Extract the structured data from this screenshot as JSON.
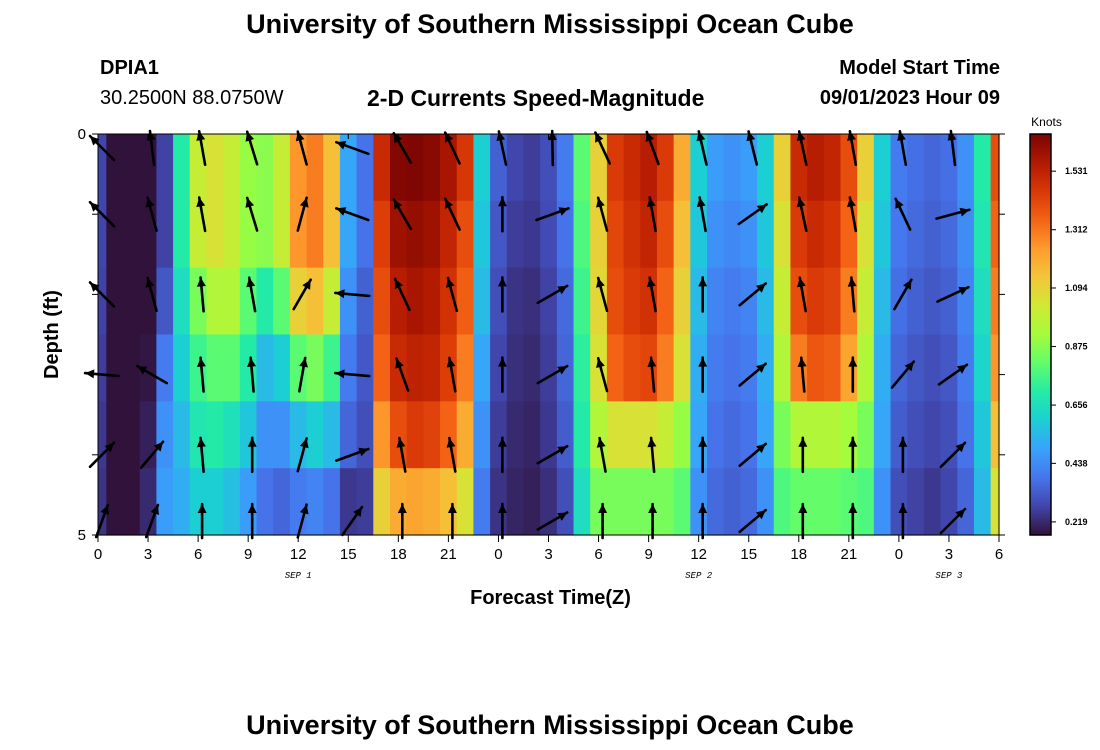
{
  "header": {
    "title": "University of Southern Mississippi Ocean Cube",
    "station_id": "DPIA1",
    "station_coords": "30.2500N  88.0750W",
    "subtitle": "2-D Currents Speed-Magnitude",
    "model_start_label": "Model Start Time",
    "model_start_value": "09/01/2023 Hour 09"
  },
  "footer": {
    "title": "University of Southern Mississippi Ocean Cube"
  },
  "colors": {
    "palette": [
      "#30123b",
      "#4145ab",
      "#4675ed",
      "#39a2fc",
      "#1bcfd4",
      "#24eca6",
      "#61fc6c",
      "#a4fc3b",
      "#d1e834",
      "#f3c63a",
      "#fe9b2d",
      "#f36315",
      "#d93806",
      "#b11901",
      "#7a0402"
    ]
  },
  "chart_data": {
    "type": "heatmap",
    "title": "2-D Currents Speed-Magnitude",
    "xlabel": "Forecast Time(Z)",
    "ylabel": "Depth (ft)",
    "x_hours": [
      0,
      1,
      2,
      3,
      4,
      5,
      6,
      7,
      8,
      9,
      10,
      11,
      12,
      13,
      14,
      15,
      16,
      17,
      18,
      19,
      20,
      21,
      22,
      23,
      24,
      25,
      26,
      27,
      28,
      29,
      30,
      31,
      32,
      33,
      34,
      35,
      36,
      37,
      38,
      39,
      40,
      41,
      42,
      43,
      44,
      45,
      46,
      47,
      48,
      49,
      50,
      51,
      52,
      53,
      54
    ],
    "x_tick_labels": [
      "0",
      "3",
      "6",
      "9",
      "12",
      "15",
      "18",
      "21",
      "0",
      "3",
      "6",
      "9",
      "12",
      "15",
      "18",
      "21",
      "0",
      "3",
      "6"
    ],
    "day_labels": [
      {
        "label": "SEP 1",
        "hour": 12
      },
      {
        "label": "SEP 2",
        "hour": 36
      },
      {
        "label": "SEP 3",
        "hour": 51
      }
    ],
    "y_tick_labels": [
      "0",
      "5"
    ],
    "ylim": [
      0,
      5
    ],
    "depths_ft": [
      0,
      1,
      2,
      3,
      4,
      5
    ],
    "colorbar": {
      "units": "Knots",
      "min": 0.17,
      "max": 1.67,
      "ticks": [
        0.219,
        0.438,
        0.656,
        0.875,
        1.094,
        1.312,
        1.531
      ]
    },
    "speed_profiles": [
      [
        0.28,
        0.14,
        0.14,
        0.15,
        0.27,
        0.7,
        1.0,
        1.05,
        1.0,
        0.9,
        0.88,
        1.0,
        1.25,
        1.3,
        1.15,
        0.5,
        0.38,
        1.5,
        1.65,
        1.66,
        1.64,
        1.58,
        1.46,
        0.6,
        0.34,
        0.28,
        0.26,
        0.3,
        0.4,
        0.8,
        1.1,
        1.45,
        1.5,
        1.55,
        1.45,
        1.2,
        0.6,
        0.48,
        0.45,
        0.48,
        0.6,
        1.1,
        1.5,
        1.55,
        1.52,
        1.4,
        1.1,
        0.6,
        0.4,
        0.37,
        0.35,
        0.37,
        0.45,
        0.7,
        1.4
      ],
      [
        0.28,
        0.14,
        0.14,
        0.15,
        0.27,
        0.7,
        1.0,
        1.05,
        1.0,
        0.9,
        0.88,
        1.0,
        1.25,
        1.3,
        1.15,
        0.5,
        0.38,
        1.44,
        1.6,
        1.62,
        1.6,
        1.52,
        1.4,
        0.58,
        0.32,
        0.26,
        0.25,
        0.29,
        0.38,
        0.78,
        1.1,
        1.42,
        1.48,
        1.52,
        1.4,
        1.15,
        0.58,
        0.45,
        0.43,
        0.45,
        0.58,
        1.05,
        1.45,
        1.5,
        1.47,
        1.35,
        1.05,
        0.58,
        0.39,
        0.36,
        0.34,
        0.36,
        0.44,
        0.68,
        1.35
      ],
      [
        0.27,
        0.14,
        0.14,
        0.16,
        0.32,
        0.65,
        0.85,
        0.95,
        0.95,
        0.8,
        0.7,
        0.8,
        1.1,
        1.15,
        1.0,
        0.45,
        0.34,
        1.4,
        1.55,
        1.58,
        1.56,
        1.48,
        1.36,
        0.55,
        0.3,
        0.24,
        0.23,
        0.27,
        0.36,
        0.75,
        1.08,
        1.4,
        1.45,
        1.48,
        1.35,
        1.1,
        0.55,
        0.42,
        0.4,
        0.42,
        0.55,
        1.0,
        1.4,
        1.45,
        1.43,
        1.3,
        1.0,
        0.55,
        0.37,
        0.34,
        0.32,
        0.34,
        0.42,
        0.65,
        1.3
      ],
      [
        0.26,
        0.14,
        0.15,
        0.18,
        0.4,
        0.6,
        0.75,
        0.8,
        0.8,
        0.7,
        0.55,
        0.6,
        0.8,
        0.85,
        0.75,
        0.4,
        0.32,
        1.35,
        1.5,
        1.53,
        1.52,
        1.44,
        1.3,
        0.5,
        0.28,
        0.23,
        0.22,
        0.26,
        0.35,
        0.72,
        1.05,
        1.35,
        1.4,
        1.42,
        1.3,
        1.05,
        0.52,
        0.4,
        0.38,
        0.4,
        0.52,
        0.95,
        1.3,
        1.38,
        1.36,
        1.22,
        0.95,
        0.52,
        0.35,
        0.32,
        0.3,
        0.32,
        0.4,
        0.62,
        1.25
      ],
      [
        0.25,
        0.14,
        0.16,
        0.2,
        0.45,
        0.55,
        0.68,
        0.7,
        0.66,
        0.58,
        0.45,
        0.45,
        0.55,
        0.6,
        0.55,
        0.35,
        0.3,
        1.25,
        1.4,
        1.45,
        1.43,
        1.35,
        1.2,
        0.45,
        0.26,
        0.22,
        0.21,
        0.25,
        0.33,
        0.7,
        0.95,
        1.05,
        1.05,
        1.05,
        1.0,
        0.9,
        0.5,
        0.38,
        0.36,
        0.38,
        0.5,
        0.85,
        0.95,
        0.95,
        0.95,
        0.92,
        0.85,
        0.5,
        0.33,
        0.3,
        0.28,
        0.3,
        0.38,
        0.58,
        1.15
      ],
      [
        0.24,
        0.14,
        0.16,
        0.22,
        0.48,
        0.52,
        0.6,
        0.6,
        0.56,
        0.48,
        0.38,
        0.35,
        0.4,
        0.42,
        0.38,
        0.25,
        0.26,
        1.1,
        1.2,
        1.22,
        1.2,
        1.15,
        1.05,
        0.4,
        0.24,
        0.21,
        0.2,
        0.23,
        0.3,
        0.65,
        0.85,
        0.85,
        0.85,
        0.85,
        0.85,
        0.8,
        0.45,
        0.36,
        0.34,
        0.36,
        0.45,
        0.78,
        0.82,
        0.82,
        0.82,
        0.8,
        0.78,
        0.45,
        0.3,
        0.27,
        0.25,
        0.28,
        0.35,
        0.55,
        1.05
      ]
    ],
    "vectors": {
      "x_hours": [
        0,
        3,
        6,
        9,
        12,
        15,
        18,
        21,
        24,
        27,
        30,
        33,
        36,
        39,
        42,
        45,
        48,
        51
      ],
      "depth_rows": [
        0,
        1,
        2,
        3,
        4,
        5
      ],
      "angles_deg": [
        [
          315,
          353,
          350,
          343,
          345,
          290,
          330,
          335,
          348,
          359,
          335,
          340,
          347,
          346,
          348,
          350,
          350,
          353
        ],
        [
          315,
          345,
          350,
          343,
          15,
          290,
          330,
          335,
          0,
          70,
          345,
          350,
          350,
          55,
          348,
          350,
          335,
          75
        ],
        [
          315,
          345,
          355,
          350,
          30,
          275,
          335,
          345,
          0,
          60,
          345,
          350,
          0,
          50,
          350,
          355,
          30,
          65
        ],
        [
          275,
          300,
          355,
          355,
          10,
          275,
          340,
          350,
          0,
          60,
          345,
          355,
          0,
          50,
          355,
          0,
          40,
          55
        ],
        [
          45,
          40,
          355,
          0,
          15,
          70,
          350,
          350,
          0,
          60,
          350,
          355,
          0,
          50,
          0,
          0,
          0,
          45
        ],
        [
          20,
          20,
          0,
          0,
          15,
          35,
          0,
          0,
          0,
          60,
          0,
          0,
          0,
          50,
          0,
          0,
          0,
          45
        ]
      ]
    }
  }
}
